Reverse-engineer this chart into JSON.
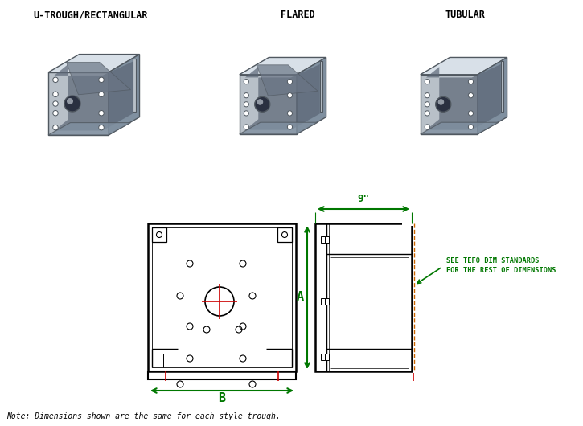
{
  "title_left": "U-TROUGH/RECTANGULAR",
  "title_center": "FLARED",
  "title_right": "TUBULAR",
  "note": "Note: Dimensions shown are the same for each style trough.",
  "dim_9inch": "9\"",
  "dim_A": "A",
  "dim_B": "B",
  "annotation_line1": "SEE TEFO DIM STANDARDS",
  "annotation_line2": "FOR THE REST OF DIMENSIONS",
  "green": "#007700",
  "red": "#cc0000",
  "orange_dash": "#cc6600",
  "black": "#000000",
  "bg": "#ffffff",
  "title_fontsize": 8.5,
  "note_fontsize": 7.0,
  "dim_fontsize": 9,
  "annot_fontsize": 6.2,
  "label_fontsize": 7.0,
  "photo_gray1": "#a0a8b0",
  "photo_gray2": "#b8c0c8",
  "photo_gray3": "#8090a0",
  "photo_gray4": "#c8d0d8",
  "photo_dark": "#505860",
  "photo_light": "#d8e0e8"
}
